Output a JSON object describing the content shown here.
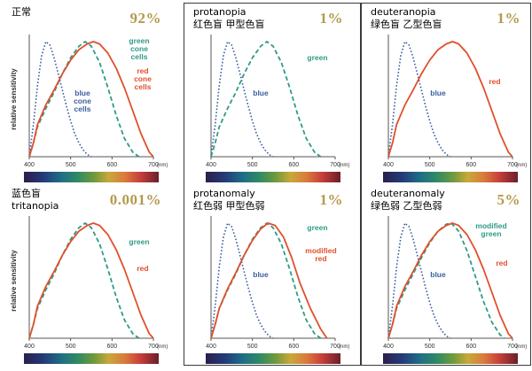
{
  "panels": [
    {
      "title": "正常",
      "subtitle": "",
      "percent": "92%",
      "series": [
        "blue",
        "green",
        "red"
      ],
      "labels": {
        "blue": [
          "blue",
          "cone",
          "cells"
        ],
        "green": [
          "green",
          "cone",
          "cells"
        ],
        "red": [
          "red",
          "cone",
          "cells"
        ]
      }
    },
    {
      "title": "protanopia",
      "subtitle": "红色盲 甲型色盲",
      "percent": "1%",
      "series": [
        "blue",
        "green"
      ],
      "labels": {
        "blue": [
          "blue"
        ],
        "green": [
          "green"
        ]
      }
    },
    {
      "title": "deuteranopia",
      "subtitle": "绿色盲 乙型色盲",
      "percent": "1%",
      "series": [
        "blue",
        "red"
      ],
      "labels": {
        "blue": [
          "blue"
        ],
        "red": [
          "red"
        ]
      }
    },
    {
      "title": "蓝色盲",
      "subtitle": "tritanopia",
      "percent": "0.001%",
      "series": [
        "green",
        "red"
      ],
      "labels": {
        "green": [
          "green"
        ],
        "red": [
          "red"
        ]
      }
    },
    {
      "title": "protanomaly",
      "subtitle": "红色弱 甲型色弱",
      "percent": "1%",
      "series": [
        "blue",
        "green",
        "modred"
      ],
      "labels": {
        "blue": [
          "blue"
        ],
        "green": [
          "green"
        ],
        "modred": [
          "modified",
          "red"
        ]
      }
    },
    {
      "title": "deuteranomaly",
      "subtitle": "绿色弱 乙型色弱",
      "percent": "5%",
      "series": [
        "blue",
        "modgreen",
        "red"
      ],
      "labels": {
        "blue": [
          "blue"
        ],
        "modgreen": [
          "modified",
          "green"
        ],
        "red": [
          "red"
        ]
      }
    }
  ],
  "axis": {
    "ylabel": "relative sensitivity",
    "xticks": [
      "400",
      "500",
      "600",
      "700"
    ],
    "unit": "(nm)"
  },
  "colors": {
    "blue": "#3a5f9e",
    "green": "#2f9a86",
    "red": "#e0502c",
    "percent": "#b59a4c",
    "frame": "#3a3a3a"
  },
  "curves": {
    "blue": [
      [
        400,
        0
      ],
      [
        410,
        0.28
      ],
      [
        420,
        0.62
      ],
      [
        430,
        0.88
      ],
      [
        440,
        1.0
      ],
      [
        450,
        0.97
      ],
      [
        460,
        0.86
      ],
      [
        470,
        0.72
      ],
      [
        480,
        0.58
      ],
      [
        490,
        0.44
      ],
      [
        500,
        0.31
      ],
      [
        510,
        0.2
      ],
      [
        520,
        0.12
      ],
      [
        530,
        0.06
      ],
      [
        540,
        0.02
      ],
      [
        550,
        0
      ]
    ],
    "green": [
      [
        400,
        0
      ],
      [
        410,
        0.12
      ],
      [
        420,
        0.26
      ],
      [
        440,
        0.42
      ],
      [
        460,
        0.56
      ],
      [
        480,
        0.72
      ],
      [
        500,
        0.86
      ],
      [
        520,
        0.96
      ],
      [
        535,
        1.0
      ],
      [
        550,
        0.96
      ],
      [
        570,
        0.82
      ],
      [
        590,
        0.6
      ],
      [
        610,
        0.36
      ],
      [
        630,
        0.16
      ],
      [
        650,
        0.04
      ],
      [
        665,
        0
      ]
    ],
    "red": [
      [
        400,
        0
      ],
      [
        410,
        0.12
      ],
      [
        420,
        0.28
      ],
      [
        440,
        0.45
      ],
      [
        460,
        0.58
      ],
      [
        480,
        0.72
      ],
      [
        500,
        0.84
      ],
      [
        520,
        0.93
      ],
      [
        540,
        0.98
      ],
      [
        555,
        1.0
      ],
      [
        570,
        0.98
      ],
      [
        590,
        0.9
      ],
      [
        610,
        0.77
      ],
      [
        630,
        0.6
      ],
      [
        650,
        0.4
      ],
      [
        670,
        0.2
      ],
      [
        690,
        0.04
      ],
      [
        700,
        0
      ]
    ],
    "modred": [
      [
        400,
        0
      ],
      [
        410,
        0.12
      ],
      [
        420,
        0.26
      ],
      [
        440,
        0.43
      ],
      [
        460,
        0.57
      ],
      [
        480,
        0.72
      ],
      [
        500,
        0.85
      ],
      [
        520,
        0.95
      ],
      [
        538,
        1.0
      ],
      [
        555,
        0.98
      ],
      [
        575,
        0.88
      ],
      [
        595,
        0.7
      ],
      [
        615,
        0.48
      ],
      [
        640,
        0.26
      ],
      [
        665,
        0.08
      ],
      [
        680,
        0
      ]
    ],
    "modgreen": [
      [
        400,
        0
      ],
      [
        410,
        0.12
      ],
      [
        420,
        0.26
      ],
      [
        440,
        0.42
      ],
      [
        460,
        0.56
      ],
      [
        480,
        0.7
      ],
      [
        500,
        0.83
      ],
      [
        520,
        0.93
      ],
      [
        540,
        0.99
      ],
      [
        552,
        1.0
      ],
      [
        570,
        0.93
      ],
      [
        590,
        0.76
      ],
      [
        610,
        0.54
      ],
      [
        630,
        0.32
      ],
      [
        650,
        0.14
      ],
      [
        670,
        0.03
      ],
      [
        680,
        0
      ]
    ]
  }
}
